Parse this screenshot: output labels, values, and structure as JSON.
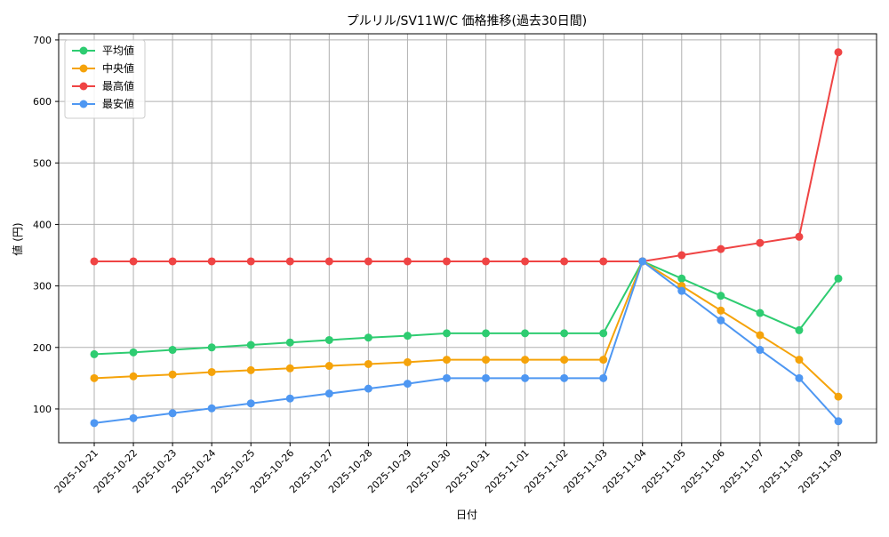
{
  "chart_data": {
    "type": "line",
    "title": "プルリル/SV11W/C 価格推移(過去30日間)",
    "xlabel": "日付",
    "ylabel": "値 (円)",
    "ylim": [
      45,
      710
    ],
    "yticks": [
      100,
      200,
      300,
      400,
      500,
      600,
      700
    ],
    "grid": true,
    "legend_position": "top-left",
    "categories": [
      "2025-10-21",
      "2025-10-22",
      "2025-10-23",
      "2025-10-24",
      "2025-10-25",
      "2025-10-26",
      "2025-10-27",
      "2025-10-28",
      "2025-10-29",
      "2025-10-30",
      "2025-10-31",
      "2025-11-01",
      "2025-11-02",
      "2025-11-03",
      "2025-11-04",
      "2025-11-05",
      "2025-11-06",
      "2025-11-07",
      "2025-11-08",
      "2025-11-09"
    ],
    "series": [
      {
        "name": "平均値",
        "color": "#2ecc71",
        "values": [
          189,
          192,
          196,
          200,
          204,
          208,
          212,
          216,
          219,
          223,
          223,
          223,
          223,
          223,
          340,
          312,
          284,
          256,
          228,
          312
        ]
      },
      {
        "name": "中央値",
        "color": "#f5a30a",
        "values": [
          150,
          153,
          156,
          160,
          163,
          166,
          170,
          173,
          176,
          180,
          180,
          180,
          180,
          180,
          340,
          300,
          260,
          220,
          180,
          120
        ]
      },
      {
        "name": "最高値",
        "color": "#ef4444",
        "values": [
          340,
          340,
          340,
          340,
          340,
          340,
          340,
          340,
          340,
          340,
          340,
          340,
          340,
          340,
          340,
          350,
          360,
          370,
          380,
          680
        ]
      },
      {
        "name": "最安値",
        "color": "#4e97f2",
        "values": [
          77,
          85,
          93,
          101,
          109,
          117,
          125,
          133,
          141,
          150,
          150,
          150,
          150,
          150,
          340,
          292,
          244,
          196,
          150,
          80
        ]
      }
    ]
  }
}
